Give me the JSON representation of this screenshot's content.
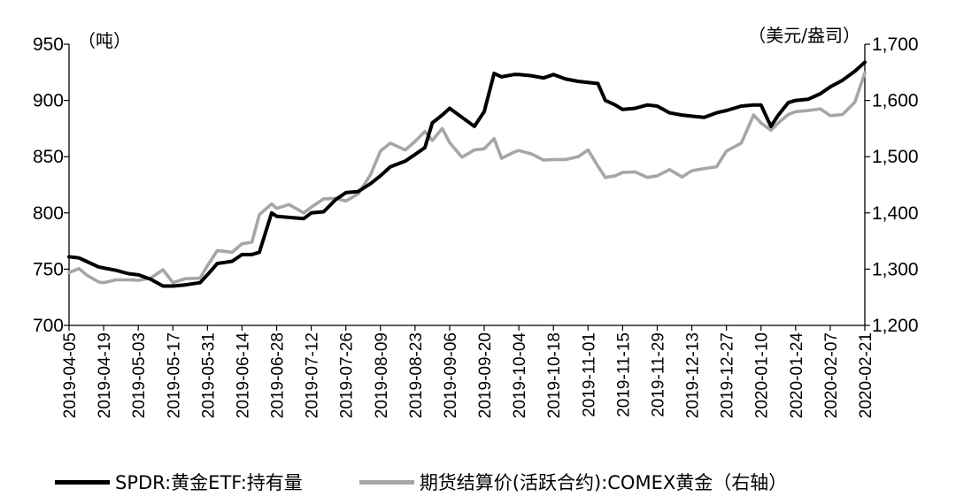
{
  "chart_data": {
    "type": "line",
    "left_axis": {
      "unit": "（吨）",
      "ylim": [
        700,
        950
      ],
      "ticks": [
        "700",
        "750",
        "800",
        "850",
        "900",
        "950"
      ]
    },
    "right_axis": {
      "unit": "（美元/盎司）",
      "ylim": [
        1200,
        1700
      ],
      "ticks": [
        "1,200",
        "1,300",
        "1,400",
        "1,500",
        "1,600",
        "1,700"
      ]
    },
    "x_tick_labels": [
      "2019-04-05",
      "2019-04-19",
      "2019-05-03",
      "2019-05-17",
      "2019-05-31",
      "2019-06-14",
      "2019-06-28",
      "2019-07-12",
      "2019-07-26",
      "2019-08-09",
      "2019-08-23",
      "2019-09-06",
      "2019-09-20",
      "2019-10-04",
      "2019-10-18",
      "2019-11-01",
      "2019-11-15",
      "2019-11-29",
      "2019-12-13",
      "2019-12-27",
      "2020-01-10",
      "2020-01-24",
      "2020-02-07",
      "2020-02-21"
    ],
    "series": [
      {
        "name": "SPDR:黄金ETF:持有量",
        "axis": "left",
        "color": "#000000",
        "x": [
          "2019-04-05",
          "2019-04-09",
          "2019-04-12",
          "2019-04-17",
          "2019-04-19",
          "2019-04-24",
          "2019-04-29",
          "2019-05-03",
          "2019-05-08",
          "2019-05-13",
          "2019-05-17",
          "2019-05-22",
          "2019-05-28",
          "2019-05-31",
          "2019-06-04",
          "2019-06-10",
          "2019-06-14",
          "2019-06-18",
          "2019-06-21",
          "2019-06-26",
          "2019-06-28",
          "2019-07-03",
          "2019-07-09",
          "2019-07-12",
          "2019-07-17",
          "2019-07-22",
          "2019-07-26",
          "2019-07-31",
          "2019-08-05",
          "2019-08-09",
          "2019-08-13",
          "2019-08-19",
          "2019-08-23",
          "2019-08-27",
          "2019-08-30",
          "2019-09-03",
          "2019-09-06",
          "2019-09-11",
          "2019-09-16",
          "2019-09-20",
          "2019-09-24",
          "2019-09-27",
          "2019-10-02",
          "2019-10-04",
          "2019-10-09",
          "2019-10-14",
          "2019-10-18",
          "2019-10-23",
          "2019-10-28",
          "2019-11-01",
          "2019-11-05",
          "2019-11-08",
          "2019-11-12",
          "2019-11-15",
          "2019-11-20",
          "2019-11-25",
          "2019-11-29",
          "2019-12-04",
          "2019-12-09",
          "2019-12-13",
          "2019-12-18",
          "2019-12-23",
          "2019-12-27",
          "2020-01-02",
          "2020-01-07",
          "2020-01-10",
          "2020-01-14",
          "2020-01-17",
          "2020-01-21",
          "2020-01-24",
          "2020-01-29",
          "2020-02-03",
          "2020-02-07",
          "2020-02-12",
          "2020-02-17",
          "2020-02-21"
        ],
        "values": [
          761,
          760,
          757,
          752,
          751,
          749,
          746,
          745,
          741,
          735,
          735,
          736,
          738,
          745,
          755,
          757,
          763,
          763,
          765,
          800,
          797,
          796,
          795,
          800,
          801,
          812,
          818,
          819,
          826,
          833,
          841,
          846,
          852,
          858,
          880,
          887,
          893,
          885,
          877,
          890,
          924,
          921,
          923,
          923,
          922,
          920,
          923,
          919,
          917,
          916,
          915,
          900,
          896,
          892,
          893,
          896,
          895,
          889,
          887,
          886,
          885,
          889,
          891,
          895,
          896,
          896,
          877,
          887,
          898,
          900,
          901,
          906,
          912,
          918,
          926,
          934
        ]
      },
      {
        "name": "期货结算价(活跃合约):COMEX黄金（右轴）",
        "axis": "right",
        "color": "#a6a6a6",
        "x": [
          "2019-04-05",
          "2019-04-09",
          "2019-04-12",
          "2019-04-17",
          "2019-04-19",
          "2019-04-24",
          "2019-04-29",
          "2019-05-03",
          "2019-05-08",
          "2019-05-13",
          "2019-05-17",
          "2019-05-22",
          "2019-05-28",
          "2019-05-31",
          "2019-06-04",
          "2019-06-10",
          "2019-06-14",
          "2019-06-18",
          "2019-06-21",
          "2019-06-26",
          "2019-06-28",
          "2019-07-03",
          "2019-07-09",
          "2019-07-12",
          "2019-07-17",
          "2019-07-22",
          "2019-07-26",
          "2019-07-31",
          "2019-08-05",
          "2019-08-09",
          "2019-08-13",
          "2019-08-19",
          "2019-08-23",
          "2019-08-27",
          "2019-08-30",
          "2019-09-03",
          "2019-09-06",
          "2019-09-11",
          "2019-09-16",
          "2019-09-20",
          "2019-09-24",
          "2019-09-27",
          "2019-10-02",
          "2019-10-04",
          "2019-10-09",
          "2019-10-14",
          "2019-10-18",
          "2019-10-23",
          "2019-10-28",
          "2019-11-01",
          "2019-11-05",
          "2019-11-08",
          "2019-11-12",
          "2019-11-15",
          "2019-11-20",
          "2019-11-25",
          "2019-11-29",
          "2019-12-04",
          "2019-12-09",
          "2019-12-13",
          "2019-12-18",
          "2019-12-23",
          "2019-12-27",
          "2020-01-02",
          "2020-01-07",
          "2020-01-10",
          "2020-01-14",
          "2020-01-17",
          "2020-01-21",
          "2020-01-24",
          "2020-01-29",
          "2020-02-03",
          "2020-02-07",
          "2020-02-12",
          "2020-02-17",
          "2020-02-21"
        ],
        "values": [
          1294,
          1301,
          1290,
          1277,
          1276,
          1281,
          1281,
          1280,
          1284,
          1299,
          1276,
          1283,
          1284,
          1306,
          1333,
          1330,
          1345,
          1348,
          1397,
          1416,
          1408,
          1415,
          1400,
          1410,
          1425,
          1426,
          1421,
          1434,
          1468,
          1510,
          1524,
          1512,
          1527,
          1545,
          1529,
          1550,
          1525,
          1499,
          1512,
          1514,
          1532,
          1497,
          1508,
          1511,
          1505,
          1494,
          1495,
          1495,
          1500,
          1512,
          1483,
          1463,
          1466,
          1472,
          1473,
          1463,
          1466,
          1477,
          1464,
          1475,
          1479,
          1482,
          1510,
          1524,
          1574,
          1560,
          1547,
          1560,
          1575,
          1580,
          1582,
          1585,
          1573,
          1575,
          1597,
          1649
        ]
      }
    ]
  },
  "legend": {
    "items": [
      {
        "label": "SPDR:黄金ETF:持有量",
        "color": "#000000"
      },
      {
        "label": "期货结算价(活跃合约):COMEX黄金（右轴）",
        "color": "#a6a6a6"
      }
    ]
  }
}
